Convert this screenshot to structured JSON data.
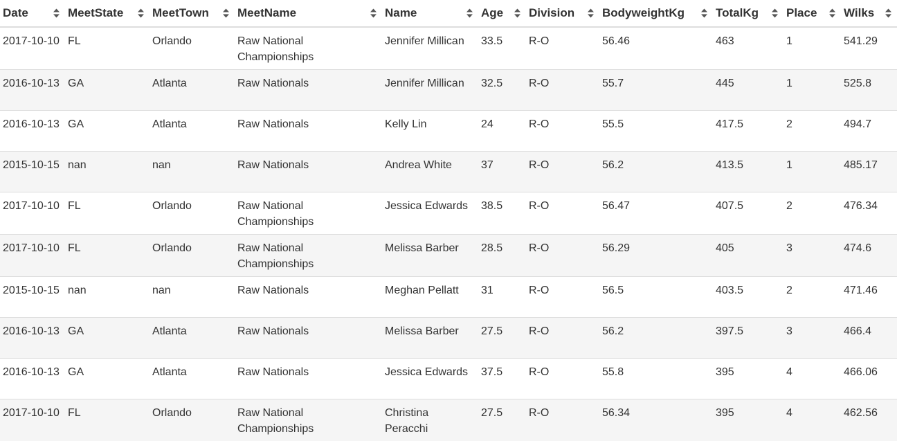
{
  "table": {
    "columns": [
      {
        "label": "Date"
      },
      {
        "label": "MeetState"
      },
      {
        "label": "MeetTown"
      },
      {
        "label": "MeetName"
      },
      {
        "label": "Name"
      },
      {
        "label": "Age"
      },
      {
        "label": "Division"
      },
      {
        "label": "BodyweightKg"
      },
      {
        "label": "TotalKg"
      },
      {
        "label": "Place"
      },
      {
        "label": "Wilks"
      }
    ],
    "sort_icon": "sort-both-icon",
    "rows": [
      [
        "2017-10-10",
        "FL",
        "Orlando",
        "Raw National Championships",
        "Jennifer Millican",
        "33.5",
        "R-O",
        "56.46",
        "463",
        "1",
        "541.29"
      ],
      [
        "2016-10-13",
        "GA",
        "Atlanta",
        "Raw Nationals",
        "Jennifer Millican",
        "32.5",
        "R-O",
        "55.7",
        "445",
        "1",
        "525.8"
      ],
      [
        "2016-10-13",
        "GA",
        "Atlanta",
        "Raw Nationals",
        "Kelly Lin",
        "24",
        "R-O",
        "55.5",
        "417.5",
        "2",
        "494.7"
      ],
      [
        "2015-10-15",
        "nan",
        "nan",
        "Raw Nationals",
        "Andrea White",
        "37",
        "R-O",
        "56.2",
        "413.5",
        "1",
        "485.17"
      ],
      [
        "2017-10-10",
        "FL",
        "Orlando",
        "Raw National Championships",
        "Jessica Edwards",
        "38.5",
        "R-O",
        "56.47",
        "407.5",
        "2",
        "476.34"
      ],
      [
        "2017-10-10",
        "FL",
        "Orlando",
        "Raw National Championships",
        "Melissa Barber",
        "28.5",
        "R-O",
        "56.29",
        "405",
        "3",
        "474.6"
      ],
      [
        "2015-10-15",
        "nan",
        "nan",
        "Raw Nationals",
        "Meghan Pellatt",
        "31",
        "R-O",
        "56.5",
        "403.5",
        "2",
        "471.46"
      ],
      [
        "2016-10-13",
        "GA",
        "Atlanta",
        "Raw Nationals",
        "Melissa Barber",
        "27.5",
        "R-O",
        "56.2",
        "397.5",
        "3",
        "466.4"
      ],
      [
        "2016-10-13",
        "GA",
        "Atlanta",
        "Raw Nationals",
        "Jessica Edwards",
        "37.5",
        "R-O",
        "55.8",
        "395",
        "4",
        "466.06"
      ],
      [
        "2017-10-10",
        "FL",
        "Orlando",
        "Raw National Championships",
        "Christina Peracchi",
        "27.5",
        "R-O",
        "56.34",
        "395",
        "4",
        "462.56"
      ]
    ]
  }
}
